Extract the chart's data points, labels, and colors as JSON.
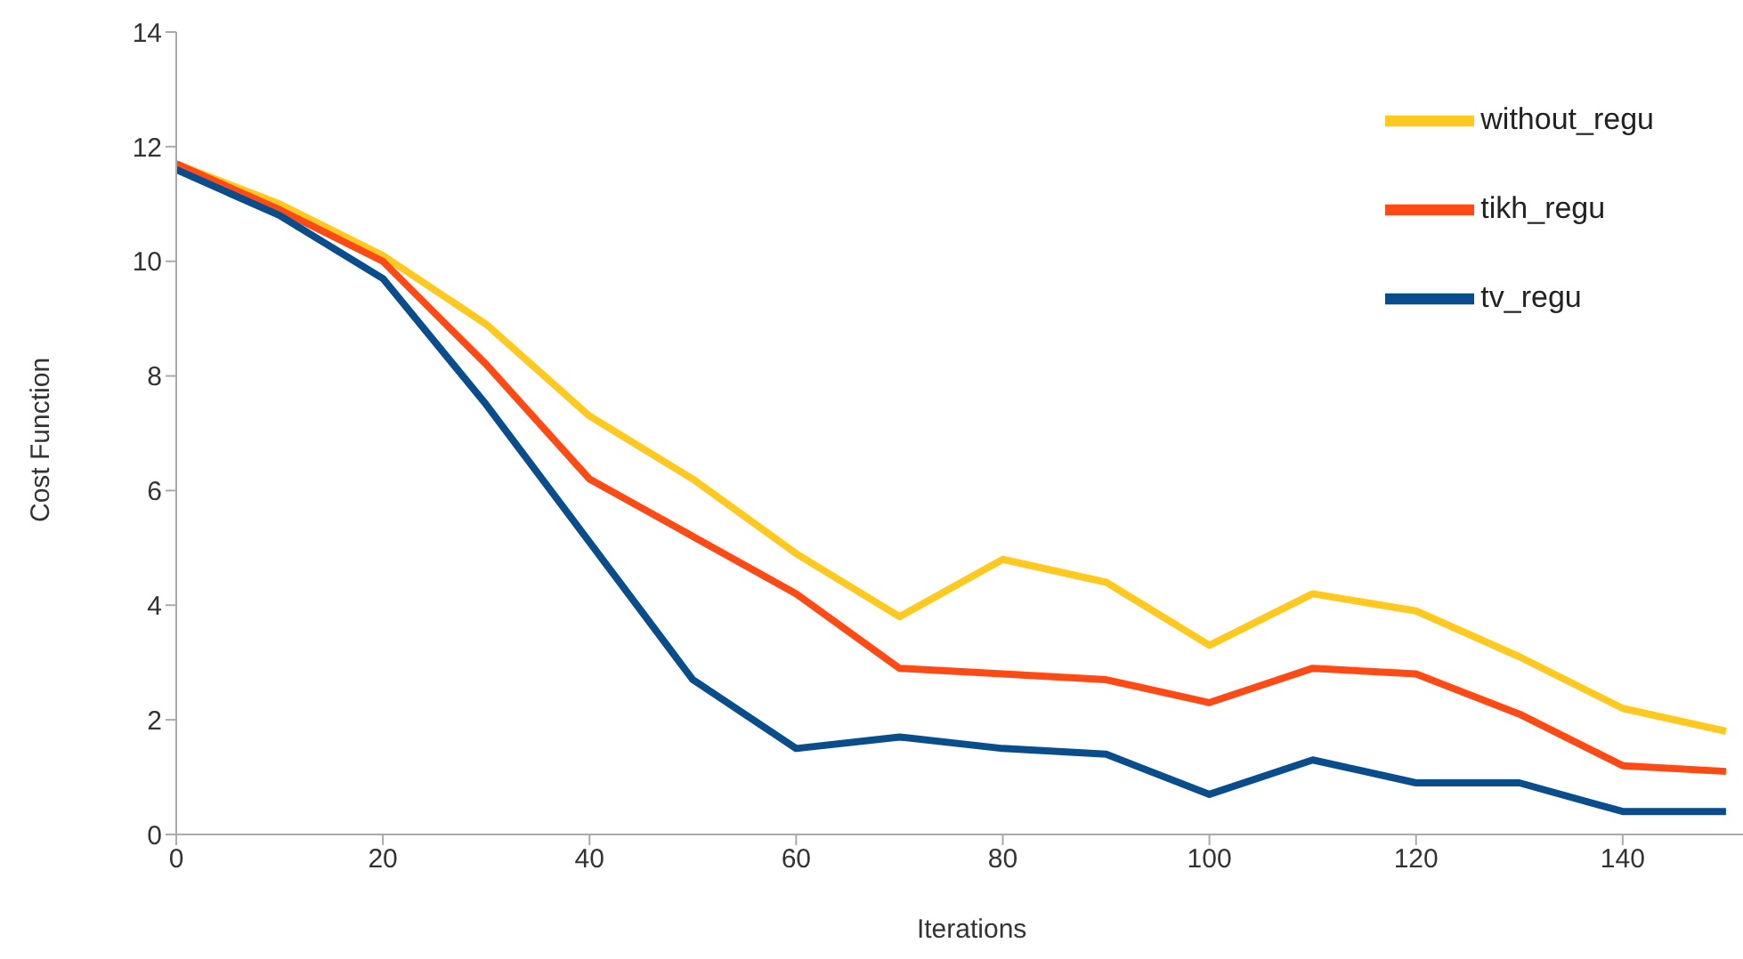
{
  "chart_data": {
    "type": "line",
    "xlabel": "Iterations",
    "ylabel": "Cost Function",
    "x": [
      0,
      10,
      20,
      30,
      40,
      50,
      60,
      70,
      80,
      90,
      100,
      110,
      120,
      130,
      140,
      150
    ],
    "series": [
      {
        "name": "without_regu",
        "color": "#ffc920",
        "values": [
          11.7,
          11.0,
          10.1,
          8.9,
          7.3,
          6.2,
          4.9,
          3.8,
          4.8,
          4.4,
          3.3,
          4.2,
          3.9,
          3.1,
          2.2,
          1.8
        ]
      },
      {
        "name": "tikh_regu",
        "color": "#ff4a16",
        "values": [
          11.7,
          10.9,
          10.0,
          8.2,
          6.2,
          5.2,
          4.2,
          2.9,
          2.8,
          2.7,
          2.3,
          2.9,
          2.8,
          2.1,
          1.2,
          1.1
        ]
      },
      {
        "name": "tv_regu",
        "color": "#0a4d8c",
        "values": [
          11.6,
          10.8,
          9.7,
          7.5,
          5.1,
          2.7,
          1.5,
          1.7,
          1.5,
          1.4,
          0.7,
          1.3,
          0.9,
          0.9,
          0.4,
          0.4
        ]
      }
    ],
    "xlim": [
      0,
      154
    ],
    "xticks": [
      0,
      20,
      40,
      60,
      80,
      100,
      120,
      140
    ],
    "ylim": [
      0,
      14
    ],
    "yticks": [
      0,
      2,
      4,
      6,
      8,
      10,
      12,
      14
    ],
    "grid": false,
    "legend": "top right",
    "marker": "none",
    "line_style": "solid"
  }
}
